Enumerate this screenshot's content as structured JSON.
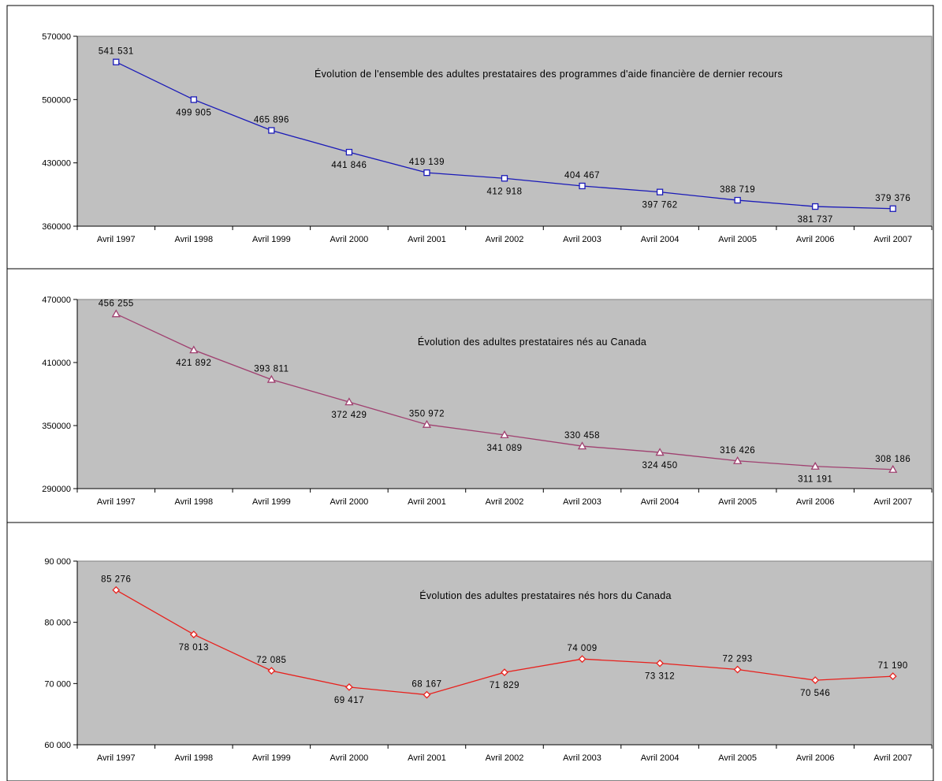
{
  "chart_data": [
    {
      "type": "line",
      "title": "Évolution de l'ensemble des adultes prestataires des programmes d'aide financière de dernier recours",
      "categories": [
        "Avril 1997",
        "Avril 1998",
        "Avril 1999",
        "Avril 2000",
        "Avril 2001",
        "Avril 2002",
        "Avril 2003",
        "Avril 2004",
        "Avril 2005",
        "Avril 2006",
        "Avril 2007"
      ],
      "values": [
        541531,
        499905,
        465896,
        441846,
        419139,
        412918,
        404467,
        397762,
        388719,
        381737,
        379376
      ],
      "data_labels": [
        "541 531",
        "499 905",
        "465 896",
        "441 846",
        "419 139",
        "412 918",
        "404 467",
        "397 762",
        "388 719",
        "381 737",
        "379 376"
      ],
      "ylim": [
        360000,
        570000
      ],
      "yticks": [
        360000,
        430000,
        500000,
        570000
      ],
      "ytick_labels": [
        "360000",
        "430000",
        "500000",
        "570000"
      ],
      "marker": "square",
      "color": "#1a1ab8",
      "grid": false
    },
    {
      "type": "line",
      "title": "Évolution des adultes prestataires nés au Canada",
      "categories": [
        "Avril 1997",
        "Avril 1998",
        "Avril 1999",
        "Avril 2000",
        "Avril 2001",
        "Avril 2002",
        "Avril 2003",
        "Avril 2004",
        "Avril 2005",
        "Avril 2006",
        "Avril 2007"
      ],
      "values": [
        456255,
        421892,
        393811,
        372429,
        350972,
        341089,
        330458,
        324450,
        316426,
        311191,
        308186
      ],
      "data_labels": [
        "456 255",
        "421 892",
        "393 811",
        "372 429",
        "350 972",
        "341 089",
        "330 458",
        "324 450",
        "316 426",
        "311 191",
        "308 186"
      ],
      "ylim": [
        290000,
        470000
      ],
      "yticks": [
        290000,
        350000,
        410000,
        470000
      ],
      "ytick_labels": [
        "290000",
        "350000",
        "410000",
        "470000"
      ],
      "marker": "triangle",
      "color": "#a04070",
      "grid": false
    },
    {
      "type": "line",
      "title": "Évolution des adultes prestataires nés hors du Canada",
      "categories": [
        "Avril 1997",
        "Avril 1998",
        "Avril 1999",
        "Avril 2000",
        "Avril 2001",
        "Avril 2002",
        "Avril 2003",
        "Avril 2004",
        "Avril 2005",
        "Avril 2006",
        "Avril 2007"
      ],
      "values": [
        85276,
        78013,
        72085,
        69417,
        68167,
        71829,
        74009,
        73312,
        72293,
        70546,
        71190
      ],
      "data_labels": [
        "85 276",
        "78 013",
        "72 085",
        "69 417",
        "68 167",
        "71 829",
        "74 009",
        "73 312",
        "72 293",
        "70 546",
        "71 190"
      ],
      "ylim": [
        60000,
        90000
      ],
      "yticks": [
        60000,
        70000,
        80000,
        90000
      ],
      "ytick_labels": [
        "60 000",
        "70 000",
        "80 000",
        "90 000"
      ],
      "marker": "diamond",
      "color": "#e8201c",
      "grid": false
    }
  ]
}
